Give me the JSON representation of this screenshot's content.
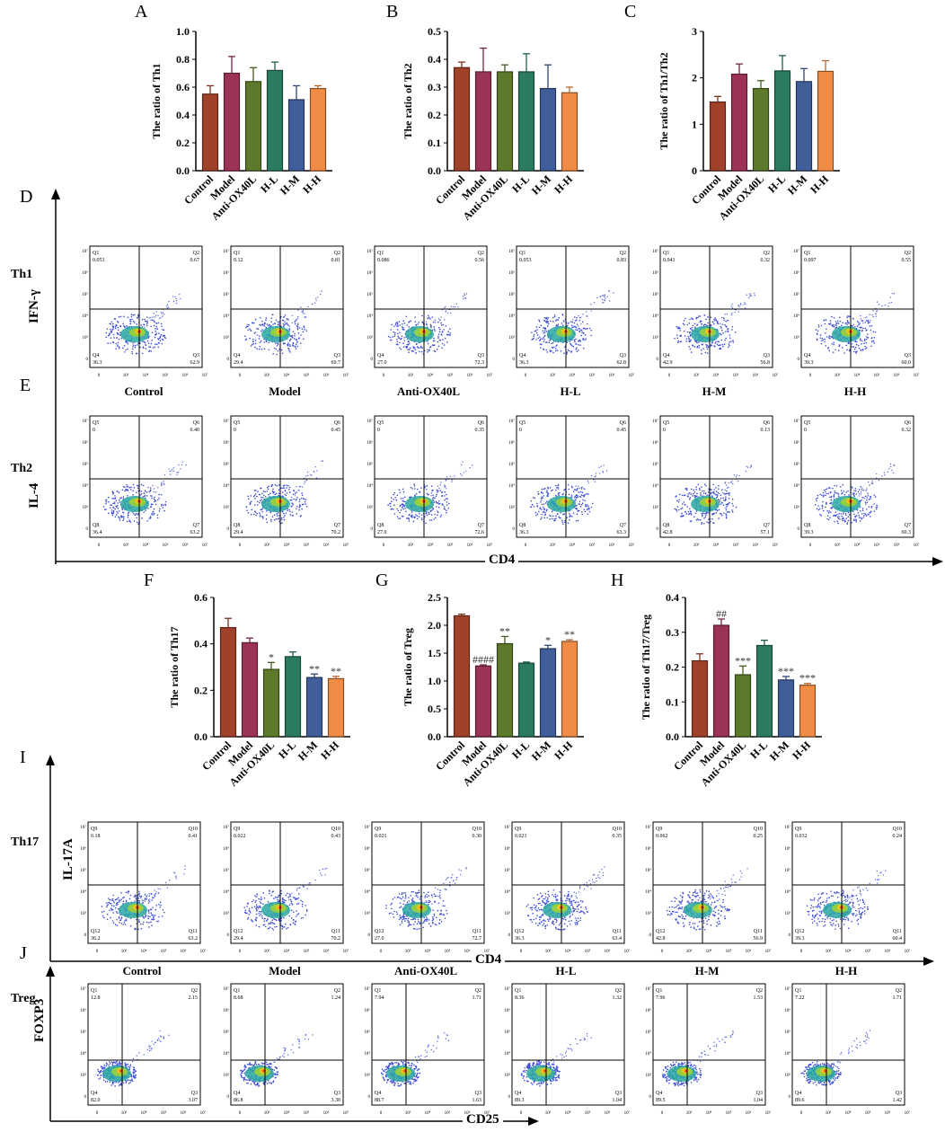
{
  "panels": {
    "A": "A",
    "B": "B",
    "C": "C",
    "D": "D",
    "E": "E",
    "F": "F",
    "G": "G",
    "H": "H",
    "I": "I",
    "J": "J"
  },
  "colors": {
    "Control": "#a0422a",
    "Model": "#9b3358",
    "Anti-OX40L": "#5c7a2a",
    "H-L": "#2b7c5e",
    "H-M": "#3f5e9a",
    "H-H": "#f08c45"
  },
  "group_labels": [
    "Control",
    "Model",
    "Anti-OX40L",
    "H-L",
    "H-M",
    "H-H"
  ],
  "chart_data": [
    {
      "id": "A",
      "type": "bar",
      "categories": [
        "Control",
        "Model",
        "Anti-OX40L",
        "H-L",
        "H-M",
        "H-H"
      ],
      "values": [
        0.55,
        0.7,
        0.64,
        0.72,
        0.51,
        0.59
      ],
      "errors": [
        0.06,
        0.12,
        0.1,
        0.06,
        0.1,
        0.02
      ],
      "ylabel": "The ratio of Th1",
      "ylim": [
        0,
        1.0
      ],
      "ticks": [
        "0.0",
        "0.2",
        "0.4",
        "0.6",
        "0.8",
        "1.0"
      ],
      "tickvals": [
        0,
        0.2,
        0.4,
        0.6,
        0.8,
        1.0
      ],
      "annotations": [
        "",
        "",
        "",
        "",
        "",
        ""
      ]
    },
    {
      "id": "B",
      "type": "bar",
      "categories": [
        "Control",
        "Model",
        "Anti-OX40L",
        "H-L",
        "H-M",
        "H-H"
      ],
      "values": [
        0.37,
        0.355,
        0.355,
        0.355,
        0.295,
        0.28
      ],
      "errors": [
        0.02,
        0.085,
        0.025,
        0.065,
        0.085,
        0.02
      ],
      "ylabel": "The ratio of Th2",
      "ylim": [
        0,
        0.5
      ],
      "ticks": [
        "0.0",
        "0.1",
        "0.2",
        "0.3",
        "0.4",
        "0.5"
      ],
      "tickvals": [
        0,
        0.1,
        0.2,
        0.3,
        0.4,
        0.5
      ],
      "annotations": [
        "",
        "",
        "",
        "",
        "",
        ""
      ]
    },
    {
      "id": "C",
      "type": "bar",
      "categories": [
        "Control",
        "Model",
        "Anti-OX40L",
        "H-L",
        "H-M",
        "H-H"
      ],
      "values": [
        1.48,
        2.08,
        1.77,
        2.15,
        1.92,
        2.14
      ],
      "errors": [
        0.12,
        0.22,
        0.17,
        0.33,
        0.28,
        0.23
      ],
      "ylabel": "The ratio of Th1/Th2",
      "ylim": [
        0,
        3
      ],
      "ticks": [
        "0",
        "1",
        "2",
        "3"
      ],
      "tickvals": [
        0,
        1,
        2,
        3
      ],
      "annotations": [
        "",
        "",
        "",
        "",
        "",
        ""
      ]
    },
    {
      "id": "F",
      "type": "bar",
      "categories": [
        "Control",
        "Model",
        "Anti-OX40L",
        "H-L",
        "H-M",
        "H-H"
      ],
      "values": [
        0.47,
        0.405,
        0.29,
        0.345,
        0.255,
        0.25
      ],
      "errors": [
        0.04,
        0.02,
        0.03,
        0.02,
        0.015,
        0.01
      ],
      "ylabel": "The ratio of Th17",
      "ylim": [
        0,
        0.6
      ],
      "ticks": [
        "0.0",
        "0.2",
        "0.4",
        "0.6"
      ],
      "tickvals": [
        0,
        0.2,
        0.4,
        0.6
      ],
      "annotations": [
        "",
        "",
        "*",
        "",
        "**",
        "**"
      ]
    },
    {
      "id": "G",
      "type": "bar",
      "categories": [
        "Control",
        "Model",
        "Anti-OX40L",
        "H-L",
        "H-M",
        "H-H"
      ],
      "values": [
        2.17,
        1.27,
        1.67,
        1.32,
        1.58,
        1.71
      ],
      "errors": [
        0.03,
        0.02,
        0.13,
        0.02,
        0.06,
        0.03
      ],
      "ylabel": "The ratio of Treg",
      "ylim": [
        0,
        2.5
      ],
      "ticks": [
        "0.0",
        "0.5",
        "1.0",
        "1.5",
        "2.0",
        "2.5"
      ],
      "tickvals": [
        0,
        0.5,
        1.0,
        1.5,
        2.0,
        2.5
      ],
      "annotations": [
        "",
        "####",
        "**",
        "",
        "*",
        "**"
      ]
    },
    {
      "id": "H",
      "type": "bar",
      "categories": [
        "Control",
        "Model",
        "Anti-OX40L",
        "H-L",
        "H-M",
        "H-H"
      ],
      "values": [
        0.218,
        0.32,
        0.178,
        0.262,
        0.163,
        0.148
      ],
      "errors": [
        0.02,
        0.018,
        0.025,
        0.015,
        0.01,
        0.005
      ],
      "ylabel": "The ratio of Th17/Treg",
      "ylim": [
        0,
        0.4
      ],
      "ticks": [
        "0.0",
        "0.1",
        "0.2",
        "0.3",
        "0.4"
      ],
      "tickvals": [
        0,
        0.1,
        0.2,
        0.3,
        0.4
      ],
      "annotations": [
        "",
        "##",
        "***",
        "",
        "***",
        "***"
      ]
    }
  ],
  "flow": {
    "ticks": [
      "0",
      "10³",
      "10⁴",
      "10⁵",
      "10⁶",
      "10⁷"
    ],
    "rows": [
      {
        "id": "D",
        "row_label": "Th1",
        "y_label": "IFN-γ",
        "q": [
          "Q1",
          "Q2",
          "Q3",
          "Q4"
        ],
        "values": [
          [
            "0.053",
            "0.67",
            "62.9",
            "36.3"
          ],
          [
            "0.12",
            "0.81",
            "69.7",
            "29.4"
          ],
          [
            "0.086",
            "0.56",
            "72.3",
            "27.0"
          ],
          [
            "0.053",
            "0.83",
            "62.8",
            "36.3"
          ],
          [
            "0.041",
            "0.32",
            "56.8",
            "42.9"
          ],
          [
            "0.097",
            "0.55",
            "60.0",
            "39.3"
          ]
        ]
      },
      {
        "id": "E",
        "row_label": "Th2",
        "y_label": "IL-4",
        "q": [
          "Q5",
          "Q6",
          "Q7",
          "Q8"
        ],
        "values": [
          [
            "0",
            "0.40",
            "63.2",
            "36.4"
          ],
          [
            "0",
            "0.45",
            "70.2",
            "29.4"
          ],
          [
            "0",
            "0.35",
            "72.6",
            "27.0"
          ],
          [
            "0",
            "0.45",
            "63.3",
            "36.3"
          ],
          [
            "0",
            "0.13",
            "57.1",
            "42.8"
          ],
          [
            "0",
            "0.32",
            "60.3",
            "39.3"
          ]
        ]
      },
      {
        "id": "I",
        "row_label": "Th17",
        "y_label": "IL-17A",
        "q": [
          "Q9",
          "Q10",
          "Q11",
          "Q12"
        ],
        "values": [
          [
            "0.18",
            "0.41",
            "63.2",
            "36.2"
          ],
          [
            "0.022",
            "0.43",
            "70.2",
            "29.4"
          ],
          [
            "0.021",
            "0.30",
            "72.7",
            "27.0"
          ],
          [
            "0.021",
            "0.35",
            "63.4",
            "36.3"
          ],
          [
            "0.062",
            "0.25",
            "56.9",
            "42.8"
          ],
          [
            "0.032",
            "0.24",
            "60.4",
            "39.3"
          ]
        ]
      },
      {
        "id": "J",
        "row_label": "Treg",
        "y_label": "FOXP3",
        "q": [
          "Q1",
          "Q2",
          "Q3",
          "Q4"
        ],
        "values": [
          [
            "12.8",
            "2.15",
            "3.07",
            "82.0"
          ],
          [
            "8.68",
            "1.24",
            "3.30",
            "86.8"
          ],
          [
            "7.94",
            "1.71",
            "1.63",
            "88.7"
          ],
          [
            "8.36",
            "1.32",
            "1.04",
            "89.3"
          ],
          [
            "7.96",
            "1.53",
            "1.04",
            "89.5"
          ],
          [
            "7.22",
            "1.71",
            "1.42",
            "89.6"
          ]
        ]
      }
    ],
    "x_axis_top": "CD4",
    "x_axis_bottom_I": "CD4",
    "x_axis_bottom_J": "CD25"
  }
}
